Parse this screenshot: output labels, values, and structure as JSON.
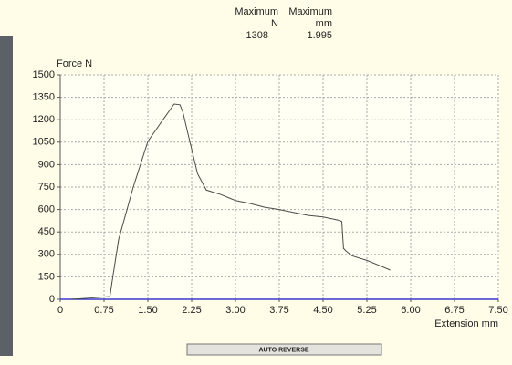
{
  "chart_data": {
    "type": "line",
    "y_label": "Force N",
    "x_label": "Extension mm",
    "x": [
      0.19,
      0.5,
      0.85,
      0.9,
      1.0,
      1.25,
      1.5,
      1.75,
      1.95,
      2.05,
      2.1,
      2.2,
      2.35,
      2.5,
      2.75,
      3.0,
      3.25,
      3.5,
      3.75,
      4.0,
      4.25,
      4.5,
      4.75,
      4.82,
      4.85,
      4.9,
      5.0,
      5.25,
      5.5,
      5.65
    ],
    "series": [
      {
        "name": "Force",
        "color": "#4a4a4a",
        "values": [
          0,
          8,
          18,
          150,
          400,
          750,
          1055,
          1195,
          1305,
          1300,
          1250,
          1085,
          840,
          730,
          700,
          660,
          640,
          615,
          600,
          580,
          560,
          550,
          530,
          520,
          340,
          320,
          290,
          260,
          220,
          195
        ]
      }
    ],
    "xlim": [
      0,
      7.5
    ],
    "xticks": [
      0,
      0.75,
      {
        "value": 1.5,
        "label": "1.50"
      },
      2.25,
      {
        "value": 3,
        "label": "3.00"
      },
      3.75,
      {
        "value": 4.5,
        "label": "4.50"
      },
      5.25,
      {
        "value": 6,
        "label": "6.00"
      },
      6.75,
      {
        "value": 7.5,
        "label": "7.50"
      }
    ],
    "ylim": [
      0,
      1500
    ],
    "yticks": [
      0,
      150,
      300,
      450,
      600,
      750,
      900,
      1050,
      1200,
      1350,
      1500
    ],
    "grid": true
  },
  "summary": {
    "columns": [
      {
        "heading": "Maximum",
        "unit": "N",
        "value": "1308"
      },
      {
        "heading": "Maximum",
        "unit": "mm",
        "value": "1.995"
      }
    ]
  },
  "button": {
    "label": "AUTO REVERSE"
  }
}
